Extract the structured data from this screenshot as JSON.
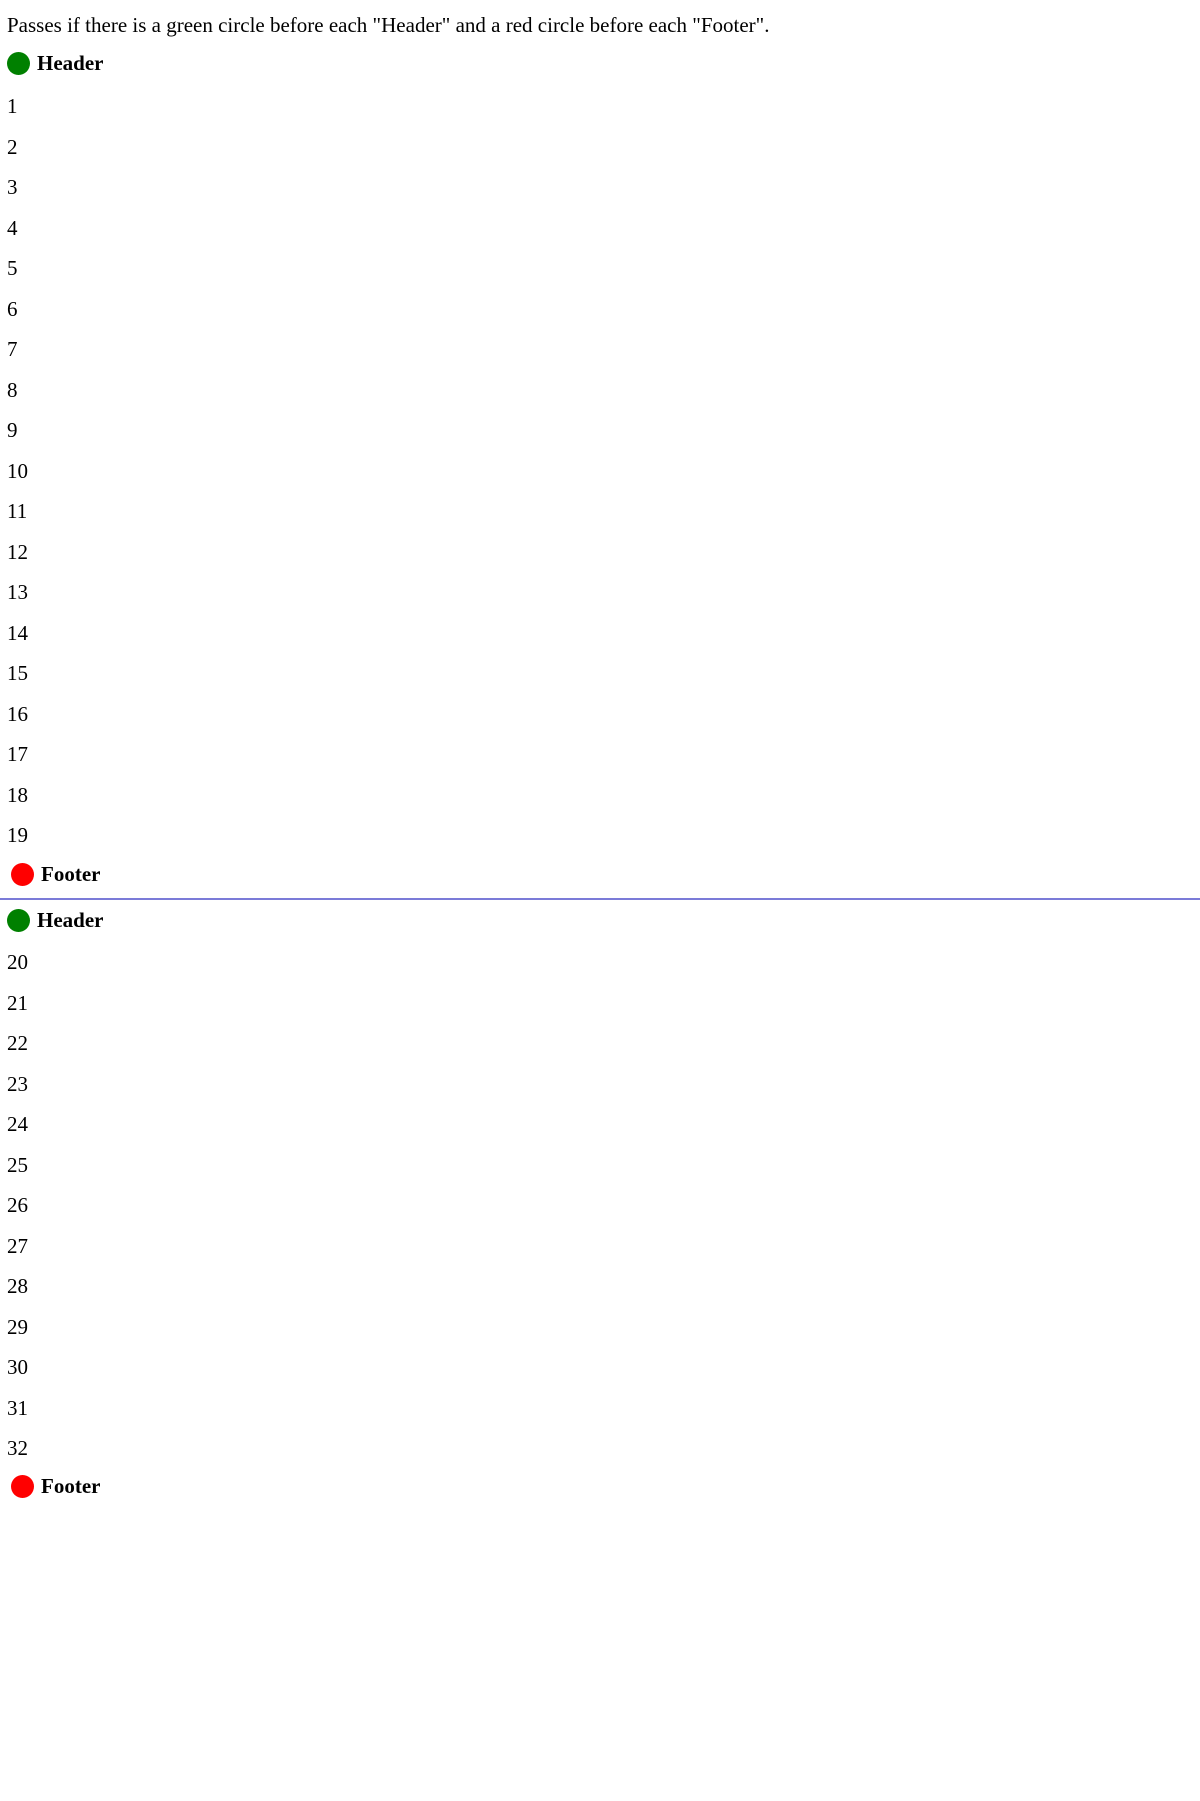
{
  "instruction": "Passes if there is a green circle before each \"Header\" and a red circle before each \"Footer\".",
  "colors": {
    "header_circle": "#008000",
    "footer_circle": "#ff0000",
    "page_break_line": "#7b7bd8"
  },
  "pages": [
    {
      "header": {
        "icon": "green-circle-icon",
        "label": "Header"
      },
      "lines": [
        "1",
        "2",
        "3",
        "4",
        "5",
        "6",
        "7",
        "8",
        "9",
        "10",
        "11",
        "12",
        "13",
        "14",
        "15",
        "16",
        "17",
        "18",
        "19"
      ],
      "footer": {
        "icon": "red-circle-icon",
        "label": "Footer"
      }
    },
    {
      "header": {
        "icon": "green-circle-icon",
        "label": "Header"
      },
      "lines": [
        "20",
        "21",
        "22",
        "23",
        "24",
        "25",
        "26",
        "27",
        "28",
        "29",
        "30",
        "31",
        "32"
      ],
      "footer": {
        "icon": "red-circle-icon",
        "label": "Footer"
      }
    }
  ]
}
